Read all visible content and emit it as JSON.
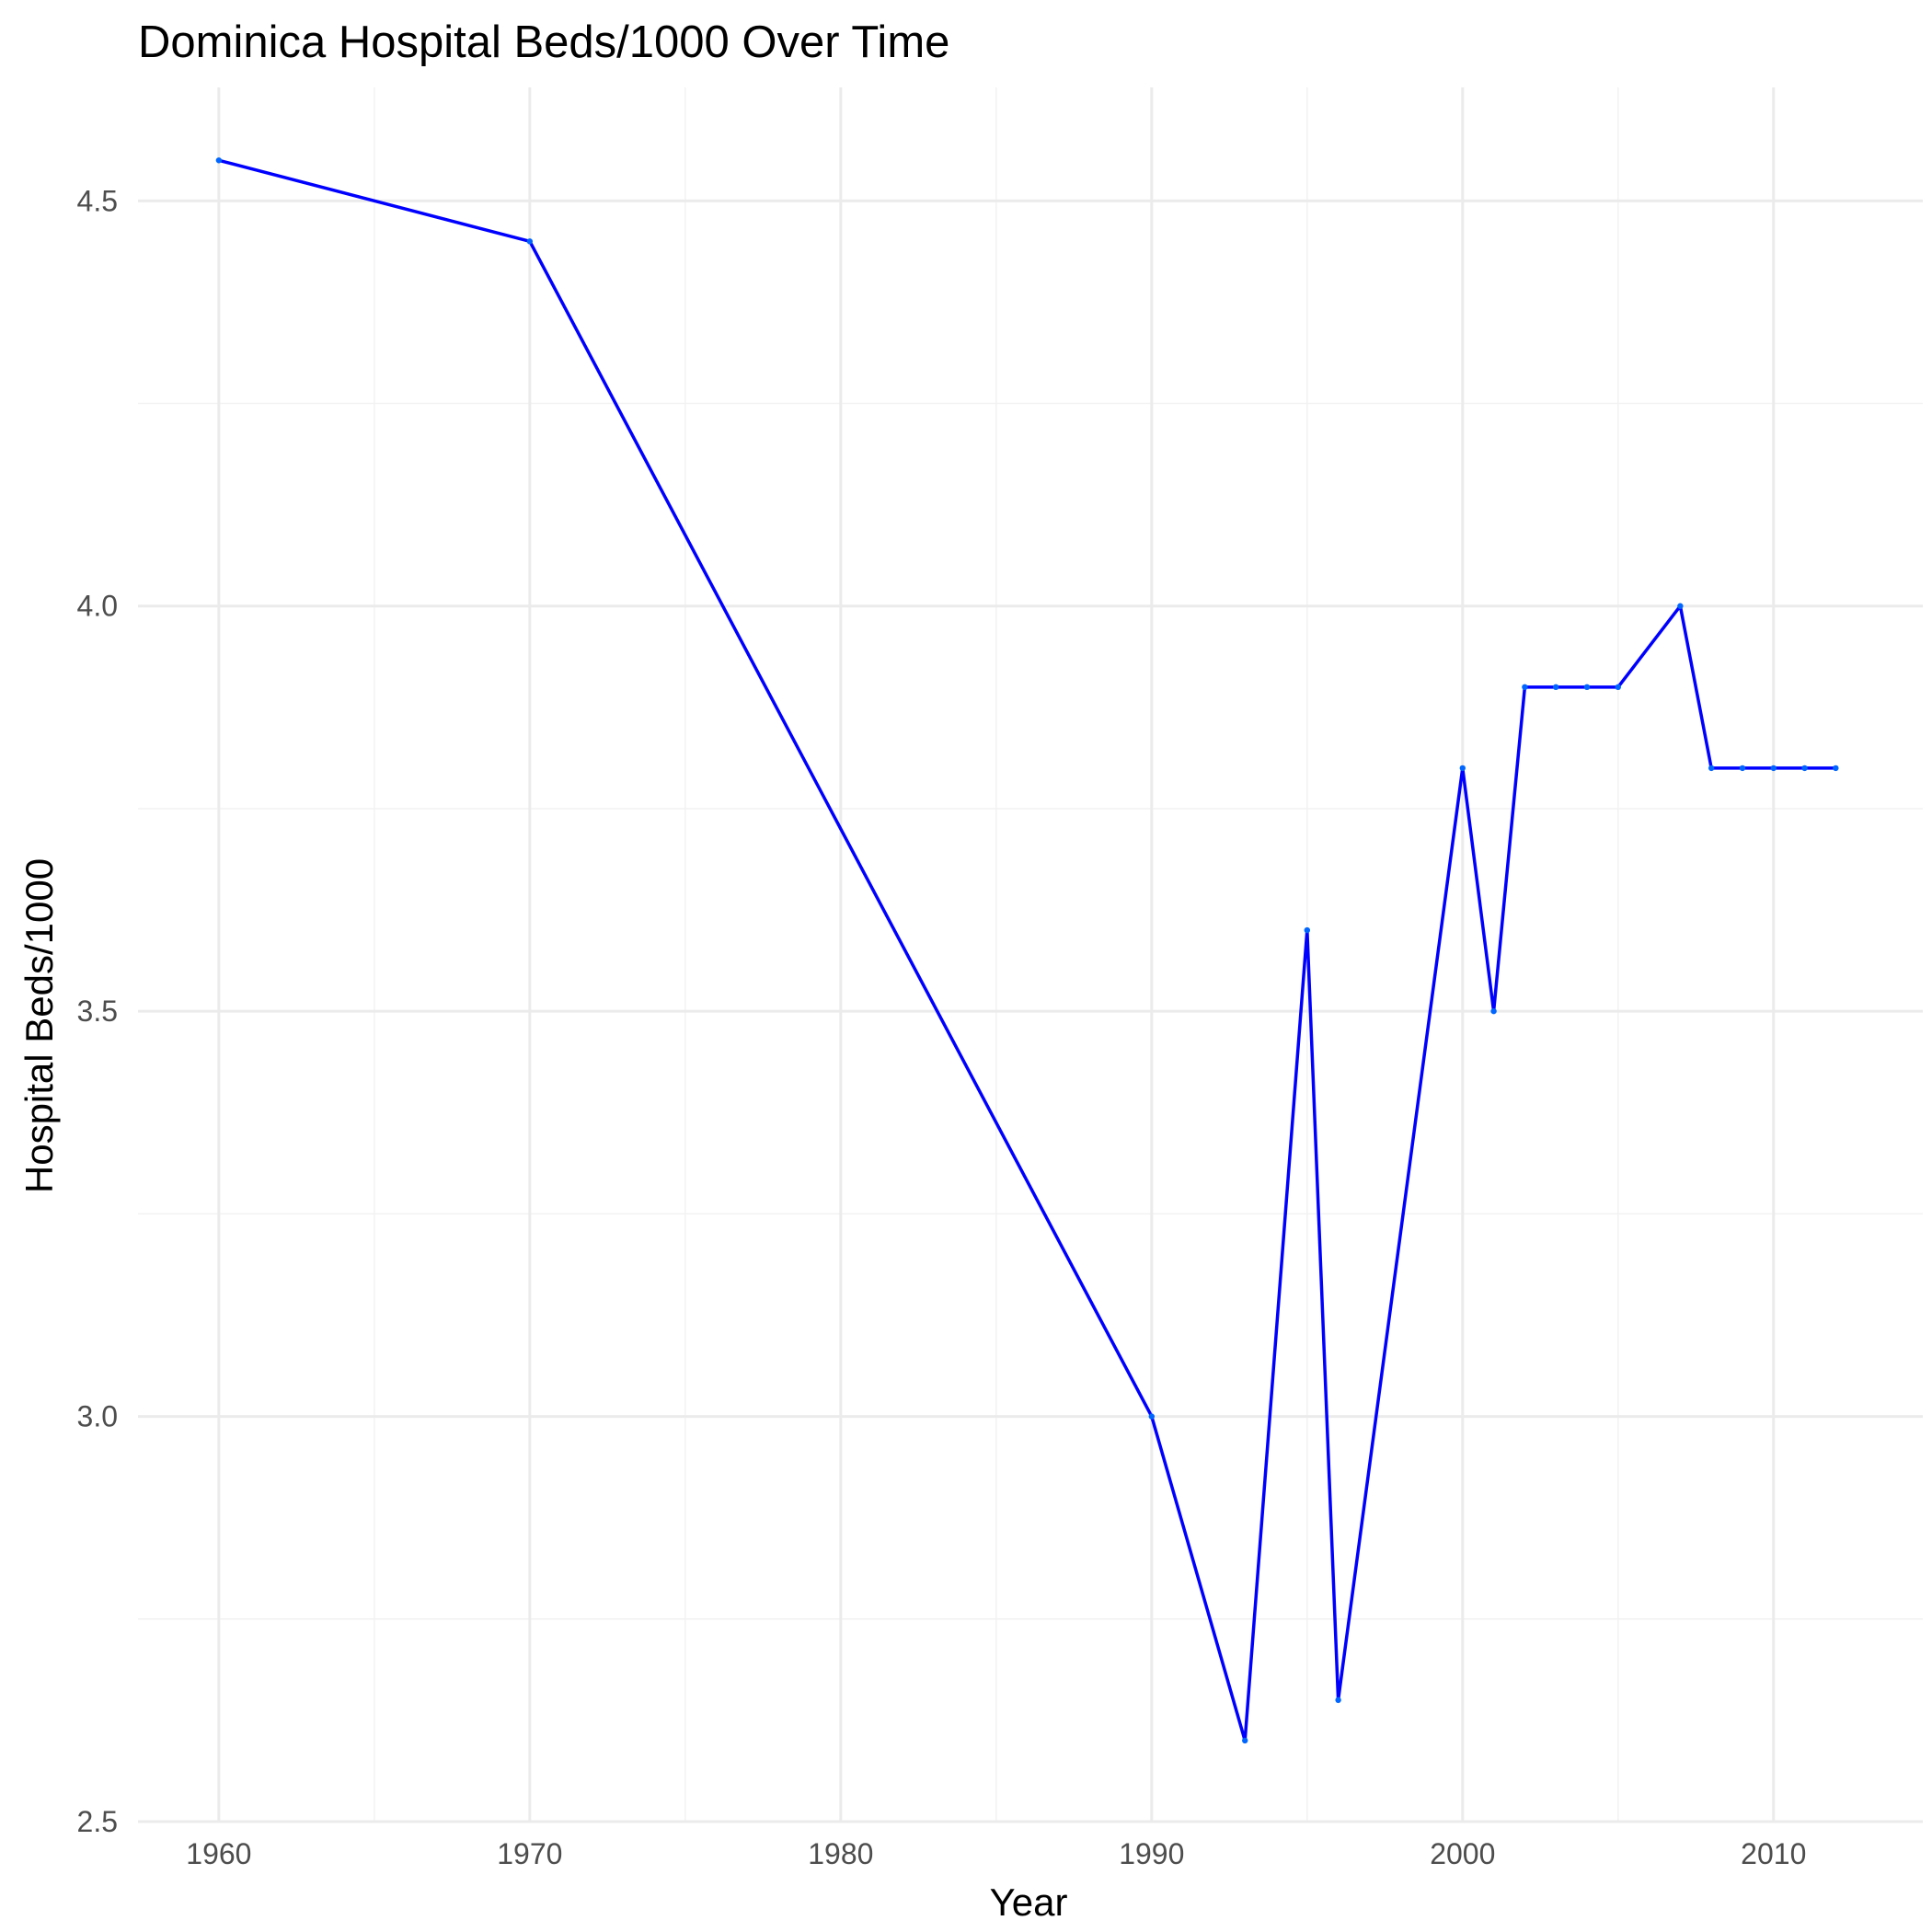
{
  "chart_data": {
    "type": "line",
    "title": "Dominica Hospital Beds/1000 Over Time",
    "xlabel": "Year",
    "ylabel": "Hospital Beds/1000",
    "xlim": [
      1957.4,
      2014.8
    ],
    "ylim": [
      2.5,
      4.64
    ],
    "x_ticks": [
      1960,
      1970,
      1980,
      1990,
      2000,
      2010
    ],
    "x_minor_ticks": [
      1965,
      1975,
      1985,
      1995,
      2005
    ],
    "y_ticks": [
      2.5,
      3.0,
      3.5,
      4.0,
      4.5
    ],
    "y_tick_labels": [
      "2.5",
      "3.0",
      "3.5",
      "4.0",
      "4.5"
    ],
    "y_minor_ticks": [
      2.75,
      3.25,
      3.75,
      4.25
    ],
    "grid": true,
    "legend": "none",
    "line_color": "#0000ff",
    "point_color": "#0066ff",
    "series": [
      {
        "x": [
          1960,
          1970,
          1990,
          1993,
          1995,
          1996,
          2000,
          2001,
          2002,
          2003,
          2004,
          2005,
          2007,
          2008,
          2009,
          2010,
          2011,
          2012
        ],
        "values": [
          4.55,
          4.45,
          3.0,
          2.6,
          3.6,
          2.65,
          3.8,
          3.5,
          3.9,
          3.9,
          3.9,
          3.9,
          4.0,
          3.8,
          3.8,
          3.8,
          3.8,
          3.8
        ]
      }
    ]
  }
}
